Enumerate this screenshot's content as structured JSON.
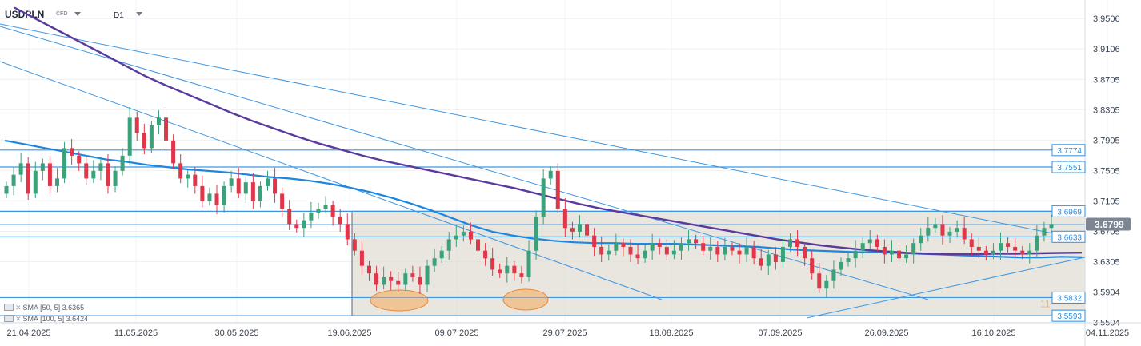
{
  "header": {
    "symbol": "USDPLN",
    "instrument_type": "CFD",
    "timeframe": "D1"
  },
  "indicators": [
    {
      "name": "SMA",
      "params": "[50, 5]",
      "value": "3.6365"
    },
    {
      "name": "SMA",
      "params": "[100, 5]",
      "value": "3.6424"
    }
  ],
  "current_price_label": "3.6799",
  "annotation_text": "11",
  "colors": {
    "bull": "#3aa17a",
    "bear": "#e0364a",
    "sma50": "#1c86e0",
    "sma100": "#5b3a9e",
    "line": "#3d96e2",
    "axis_tag": "#2f8fe0",
    "price_tag": "#7c8693",
    "range_fill": "#e0ddd3",
    "highlight": "#f6a85a"
  },
  "chart_data": {
    "type": "candlestick",
    "x_ticks": [
      "21.04.2025",
      "11.05.2025",
      "30.05.2025",
      "19.06.2025",
      "09.07.2025",
      "29.07.2025",
      "18.08.2025",
      "07.09.2025",
      "26.09.2025",
      "16.10.2025",
      "04.11.2025"
    ],
    "y_ticks": [
      3.9506,
      3.9106,
      3.8705,
      3.8305,
      3.7905,
      3.7505,
      3.7105,
      3.6705,
      3.6305,
      3.5904,
      3.5504
    ],
    "ylim": [
      3.55,
      3.975
    ],
    "horizontal_levels": [
      3.7774,
      3.7551,
      3.6969,
      3.6633,
      3.5832,
      3.5593
    ],
    "close_series": [
      3.73,
      3.745,
      3.76,
      3.72,
      3.75,
      3.76,
      3.73,
      3.74,
      3.78,
      3.77,
      3.76,
      3.74,
      3.75,
      3.76,
      3.73,
      3.75,
      3.77,
      3.82,
      3.8,
      3.78,
      3.81,
      3.82,
      3.79,
      3.76,
      3.74,
      3.745,
      3.73,
      3.71,
      3.72,
      3.705,
      3.73,
      3.74,
      3.72,
      3.735,
      3.71,
      3.73,
      3.74,
      3.72,
      3.7,
      3.68,
      3.675,
      3.685,
      3.695,
      3.7,
      3.705,
      3.69,
      3.68,
      3.66,
      3.645,
      3.625,
      3.615,
      3.6,
      3.61,
      3.605,
      3.6,
      3.615,
      3.61,
      3.6,
      3.625,
      3.635,
      3.645,
      3.66,
      3.665,
      3.67,
      3.66,
      3.645,
      3.635,
      3.62,
      3.615,
      3.625,
      3.615,
      3.61,
      3.645,
      3.69,
      3.74,
      3.75,
      3.7,
      3.675,
      3.67,
      3.68,
      3.665,
      3.65,
      3.64,
      3.645,
      3.655,
      3.65,
      3.64,
      3.635,
      3.645,
      3.655,
      3.65,
      3.64,
      3.645,
      3.655,
      3.66,
      3.655,
      3.645,
      3.65,
      3.64,
      3.65,
      3.645,
      3.64,
      3.65,
      3.635,
      3.625,
      3.64,
      3.63,
      3.65,
      3.66,
      3.65,
      3.635,
      3.615,
      3.595,
      3.605,
      3.62,
      3.63,
      3.635,
      3.645,
      3.655,
      3.66,
      3.65,
      3.64,
      3.645,
      3.635,
      3.64,
      3.655,
      3.665,
      3.675,
      3.68,
      3.665,
      3.67,
      3.675,
      3.66,
      3.65,
      3.645,
      3.64,
      3.645,
      3.655,
      3.65,
      3.645,
      3.64,
      3.645,
      3.665,
      3.675,
      3.68
    ],
    "sma50": [
      3.79,
      3.785,
      3.78,
      3.775,
      3.77,
      3.765,
      3.762,
      3.758,
      3.755,
      3.752,
      3.75,
      3.748,
      3.745,
      3.742,
      3.74,
      3.737,
      3.733,
      3.728,
      3.722,
      3.715,
      3.707,
      3.698,
      3.688,
      3.678,
      3.67,
      3.665,
      3.661,
      3.658,
      3.656,
      3.655,
      3.655,
      3.654,
      3.654,
      3.654,
      3.653,
      3.652,
      3.651,
      3.65,
      3.648,
      3.646,
      3.645,
      3.644,
      3.643,
      3.643,
      3.642,
      3.641,
      3.64,
      3.639,
      3.638,
      3.637,
      3.636,
      3.636,
      3.637,
      3.6365
    ],
    "sma100": [
      3.965,
      3.95,
      3.935,
      3.92,
      3.905,
      3.89,
      3.875,
      3.862,
      3.85,
      3.838,
      3.826,
      3.815,
      3.805,
      3.795,
      3.786,
      3.778,
      3.77,
      3.763,
      3.757,
      3.751,
      3.745,
      3.739,
      3.733,
      3.727,
      3.72,
      3.713,
      3.706,
      3.7,
      3.695,
      3.69,
      3.685,
      3.68,
      3.675,
      3.67,
      3.665,
      3.66,
      3.656,
      3.652,
      3.649,
      3.646,
      3.644,
      3.642,
      3.641,
      3.6405,
      3.6405,
      3.641,
      3.641,
      3.6415,
      3.642,
      3.6424
    ]
  }
}
